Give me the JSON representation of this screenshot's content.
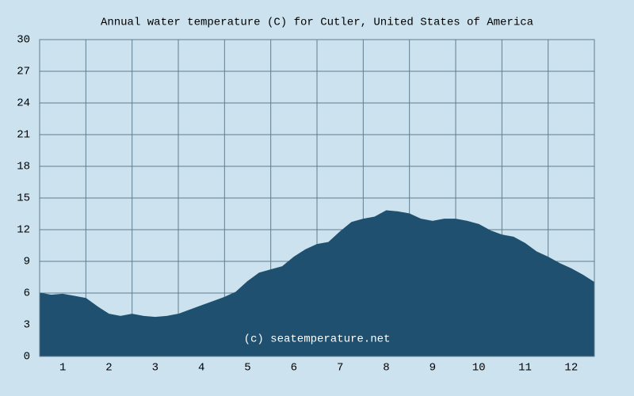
{
  "chart_data": {
    "type": "area",
    "title": "Annual water temperature (C) for Cutler, United States of America",
    "annotation": "(c) seatemperature.net",
    "x": [
      0.5,
      0.75,
      1,
      1.25,
      1.5,
      1.75,
      2,
      2.25,
      2.5,
      2.75,
      3,
      3.25,
      3.5,
      3.75,
      4,
      4.25,
      4.5,
      4.75,
      5,
      5.25,
      5.5,
      5.75,
      6,
      6.25,
      6.5,
      6.75,
      7,
      7.25,
      7.5,
      7.75,
      8,
      8.25,
      8.5,
      8.75,
      9,
      9.25,
      9.5,
      9.75,
      10,
      10.25,
      10.5,
      10.75,
      11,
      11.25,
      11.5,
      11.75,
      12,
      12.25,
      12.5
    ],
    "series": [
      {
        "color": "#1f5070",
        "values": [
          6.0,
          5.8,
          5.9,
          5.7,
          5.5,
          4.7,
          4.0,
          3.8,
          4.0,
          3.8,
          3.7,
          3.8,
          4.0,
          4.4,
          4.8,
          5.2,
          5.6,
          6.1,
          7.1,
          7.9,
          8.2,
          8.5,
          9.4,
          10.1,
          10.6,
          10.8,
          11.8,
          12.7,
          13.0,
          13.2,
          13.8,
          13.7,
          13.5,
          13.0,
          12.8,
          13.0,
          13.0,
          12.8,
          12.5,
          11.9,
          11.5,
          11.3,
          10.7,
          9.9,
          9.4,
          8.8,
          8.3,
          7.7,
          7.0
        ]
      }
    ],
    "xlim": [
      0.5,
      12.5
    ],
    "xticks": [
      1,
      2,
      3,
      4,
      5,
      6,
      7,
      8,
      9,
      10,
      11,
      12
    ],
    "ylim": [
      0,
      30
    ],
    "yticks": [
      0,
      3,
      6,
      9,
      12,
      15,
      18,
      21,
      24,
      27,
      30
    ],
    "grid": true
  }
}
